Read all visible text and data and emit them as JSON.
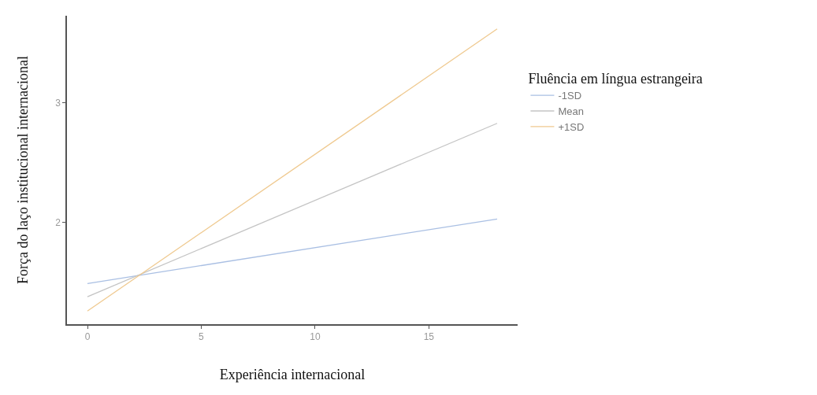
{
  "chart_data": {
    "type": "line",
    "xlabel": "Experiência internacional",
    "ylabel": "Força do laço institucional internacional",
    "legend_title": "Fluência em língua estrangeira",
    "x": [
      0,
      18
    ],
    "series": [
      {
        "name": "-1SD",
        "color": "#a9bfe3",
        "values": [
          1.49,
          2.03
        ]
      },
      {
        "name": "Mean",
        "color": "#c4c4c4",
        "values": [
          1.38,
          2.83
        ]
      },
      {
        "name": "+1SD",
        "color": "#efc98f",
        "values": [
          1.26,
          3.62
        ]
      }
    ],
    "xlim": [
      -0.9,
      18.9
    ],
    "xticks": [
      0,
      5,
      10,
      15
    ],
    "ylim": [
      1.15,
      3.73
    ],
    "yticks": [
      2,
      3
    ],
    "grid": false,
    "legend": "right",
    "marker": "none",
    "line_style": "solid"
  }
}
